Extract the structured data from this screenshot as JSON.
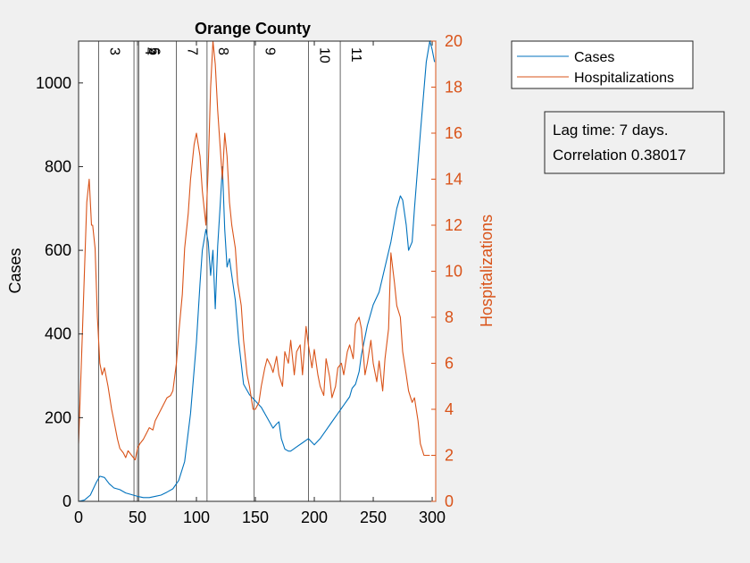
{
  "chart_data": {
    "type": "line",
    "title": "Orange County",
    "x_label": "",
    "y_label_left": "Cases",
    "y_label_right": "Hospitalizations",
    "xlim": [
      0,
      303
    ],
    "ylim_left": [
      0,
      1100
    ],
    "ylim_right": [
      0,
      20
    ],
    "x_ticks": [
      "0",
      "50",
      "100",
      "150",
      "200",
      "250",
      "300"
    ],
    "y_ticks_left": [
      "0",
      "200",
      "400",
      "600",
      "800",
      "1000"
    ],
    "y_ticks_right": [
      "0",
      "2",
      "4",
      "6",
      "8",
      "10",
      "12",
      "14",
      "16",
      "18",
      "20"
    ],
    "grid": false,
    "legend_position": "outside-top-right",
    "colors": {
      "Cases": "#0072BD",
      "Hospitalizations": "#D95319"
    },
    "annotation": {
      "line1": "Lag time: 7 days.",
      "line2": "Correlation 0.38017"
    },
    "event_lines": [
      {
        "label": "3",
        "x": 17
      },
      {
        "label": "4",
        "x": 47
      },
      {
        "label": "5",
        "x": 50
      },
      {
        "label": "6",
        "x": 51
      },
      {
        "label": "7",
        "x": 83
      },
      {
        "label": "8",
        "x": 109
      },
      {
        "label": "9",
        "x": 149
      },
      {
        "label": "10",
        "x": 195
      },
      {
        "label": "11",
        "x": 222
      }
    ],
    "series": [
      {
        "name": "Cases",
        "axis": "left",
        "x": [
          0,
          5,
          10,
          15,
          18,
          22,
          26,
          30,
          35,
          40,
          45,
          50,
          55,
          60,
          65,
          70,
          75,
          80,
          85,
          90,
          95,
          100,
          103,
          105,
          108,
          110,
          112,
          114,
          116,
          118,
          120,
          122,
          124,
          126,
          128,
          130,
          133,
          136,
          140,
          145,
          150,
          155,
          160,
          165,
          168,
          170,
          172,
          175,
          178,
          180,
          185,
          190,
          195,
          200,
          205,
          210,
          215,
          220,
          225,
          230,
          232,
          235,
          238,
          240,
          245,
          250,
          255,
          260,
          265,
          270,
          273,
          275,
          278,
          280,
          283,
          285,
          290,
          295,
          298,
          300,
          302
        ],
        "y": [
          0,
          3,
          15,
          45,
          60,
          57,
          42,
          32,
          28,
          20,
          16,
          12,
          9,
          9,
          12,
          15,
          22,
          30,
          50,
          95,
          210,
          380,
          520,
          600,
          650,
          620,
          540,
          600,
          460,
          610,
          700,
          800,
          650,
          560,
          580,
          540,
          480,
          380,
          280,
          255,
          240,
          225,
          200,
          175,
          185,
          190,
          150,
          125,
          120,
          120,
          130,
          140,
          150,
          135,
          150,
          170,
          190,
          210,
          230,
          250,
          270,
          280,
          310,
          350,
          420,
          470,
          500,
          560,
          620,
          700,
          730,
          720,
          660,
          600,
          620,
          700,
          880,
          1050,
          1100,
          1080,
          1050
        ]
      },
      {
        "name": "Hospitalizations",
        "axis": "right",
        "x": [
          0,
          3,
          5,
          7,
          9,
          10,
          11,
          12,
          14,
          16,
          18,
          20,
          22,
          25,
          28,
          30,
          33,
          35,
          38,
          40,
          42,
          45,
          48,
          50,
          52,
          55,
          58,
          60,
          63,
          65,
          68,
          70,
          73,
          75,
          78,
          80,
          83,
          85,
          88,
          90,
          93,
          95,
          98,
          100,
          103,
          105,
          108,
          110,
          112,
          114,
          116,
          118,
          120,
          122,
          124,
          126,
          128,
          130,
          133,
          135,
          138,
          140,
          143,
          145,
          148,
          150,
          153,
          155,
          158,
          160,
          163,
          165,
          168,
          170,
          173,
          175,
          178,
          180,
          183,
          185,
          188,
          190,
          193,
          195,
          198,
          200,
          203,
          205,
          208,
          210,
          213,
          215,
          218,
          220,
          223,
          225,
          228,
          230,
          233,
          235,
          238,
          240,
          243,
          245,
          248,
          250,
          253,
          255,
          258,
          260,
          263,
          265,
          268,
          270,
          273,
          275,
          278,
          280,
          283,
          285,
          288,
          290,
          293,
          295,
          298
        ],
        "y": [
          2.5,
          7,
          10,
          13,
          14,
          13,
          12,
          12,
          11,
          8,
          6,
          5.5,
          5.8,
          5,
          4,
          3.5,
          2.7,
          2.3,
          2.1,
          1.9,
          2.2,
          2,
          1.8,
          2.3,
          2.5,
          2.7,
          3.0,
          3.2,
          3.1,
          3.5,
          3.8,
          4.0,
          4.3,
          4.5,
          4.6,
          4.8,
          6.0,
          7.3,
          9.0,
          11.0,
          12.5,
          14.0,
          15.5,
          16,
          15.0,
          13.5,
          12.0,
          14.5,
          18.0,
          20,
          19,
          17,
          15.5,
          14,
          16,
          15,
          13,
          12,
          11,
          9.5,
          8.5,
          7.0,
          5.5,
          5,
          4,
          4,
          4.3,
          5,
          5.8,
          6.2,
          5.9,
          5.6,
          6.3,
          5.5,
          5.0,
          6.5,
          6.0,
          7.0,
          5.5,
          6.5,
          6.8,
          5.5,
          7.6,
          6.8,
          5.8,
          6.6,
          5.5,
          5.0,
          4.6,
          6.2,
          5.4,
          4.5,
          5.0,
          5.8,
          6.0,
          5.5,
          6.5,
          6.8,
          6.2,
          7.7,
          8.0,
          7.5,
          5.5,
          6.0,
          7.0,
          6.0,
          5.2,
          6.1,
          4.8,
          6.2,
          7.5,
          10.8,
          9.5,
          8.5,
          8.0,
          6.5,
          5.5,
          4.8,
          4.3,
          4.5,
          3.5,
          2.5,
          2.0,
          2.0,
          2.0
        ]
      }
    ]
  }
}
